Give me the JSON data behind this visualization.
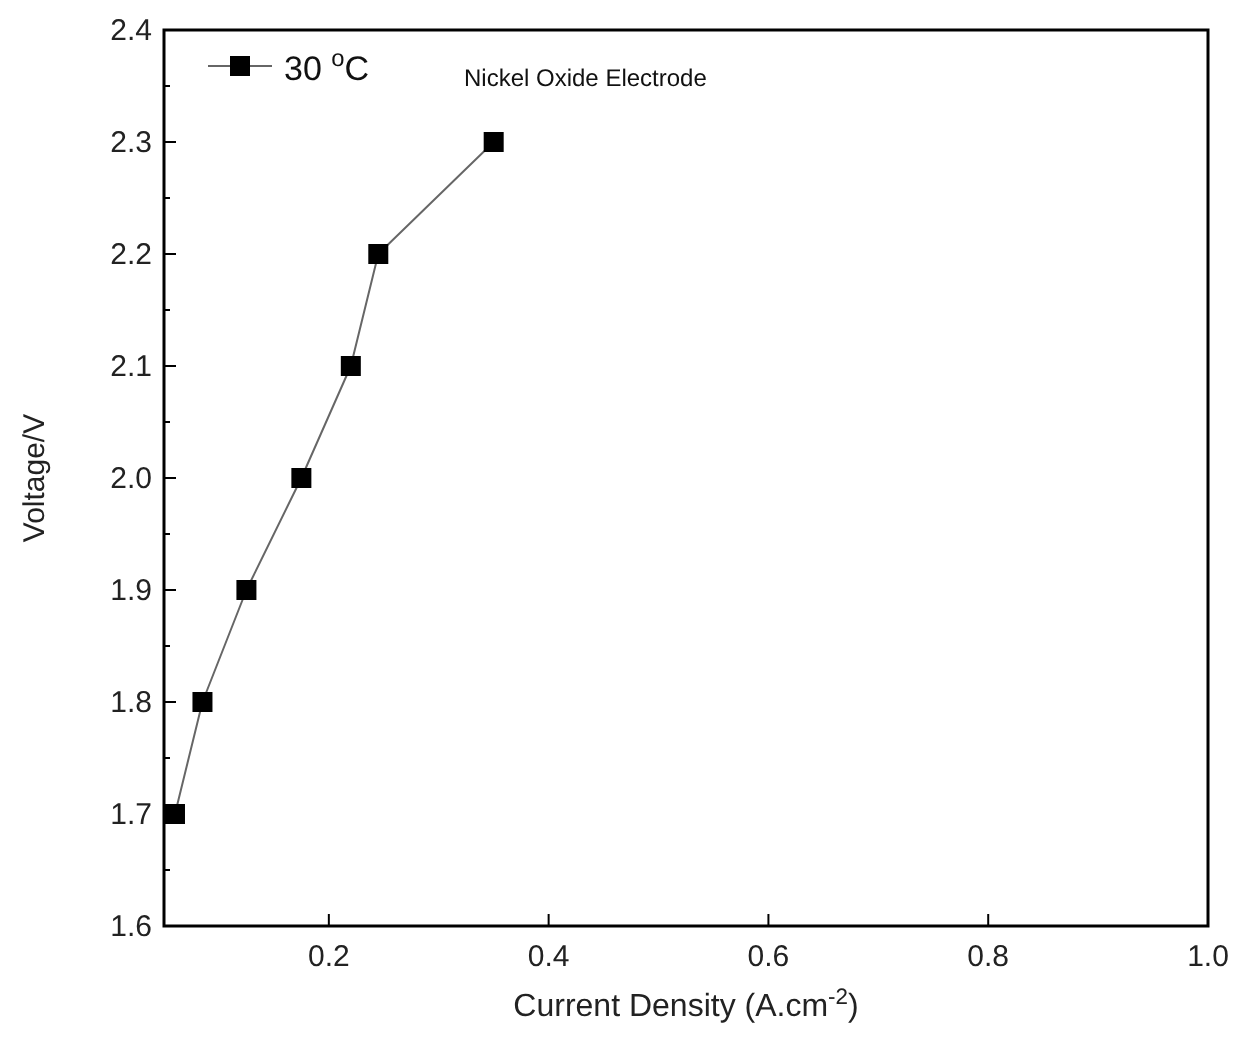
{
  "chart_data": {
    "type": "line",
    "xlabel": "Current Density  (A.cm$^{-2}$)",
    "ylabel": "Voltage/V",
    "annotations": [
      "Nickel Oxide Electrode"
    ],
    "x": [
      0.06,
      0.085,
      0.125,
      0.175,
      0.22,
      0.245,
      0.35
    ],
    "series": [
      {
        "name": "30 $^{o}$C",
        "color": "#000000",
        "values": [
          1.7,
          1.8,
          1.9,
          2.0,
          2.1,
          2.2,
          2.3
        ]
      }
    ],
    "xlim": [
      0.05,
      1.0
    ],
    "xticks": [
      0.2,
      0.4,
      0.6,
      0.8,
      {
        "value": 1,
        "label": "1.0"
      }
    ],
    "ylim": [
      1.6,
      2.4
    ],
    "yticks": [
      1.6,
      {
        "value": 1.65,
        "label": null
      },
      1.7,
      {
        "value": 1.75,
        "label": null
      },
      1.8,
      {
        "value": 1.85,
        "label": null
      },
      1.9,
      {
        "value": 1.95,
        "label": null
      },
      {
        "value": 2,
        "label": "2.0"
      },
      {
        "value": 2.05,
        "label": null
      },
      2.1,
      {
        "value": 2.15,
        "label": null
      },
      2.2,
      {
        "value": 2.25,
        "label": null
      },
      2.3,
      {
        "value": 2.35,
        "label": null
      },
      2.4
    ],
    "marker": "square",
    "line_style": "solid",
    "legend": "top left",
    "grid": false
  }
}
